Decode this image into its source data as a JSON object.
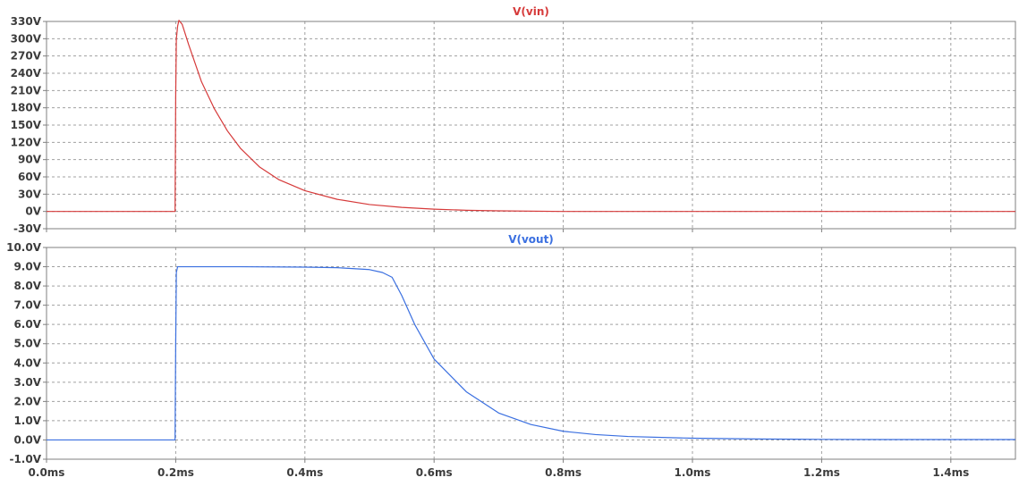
{
  "chart_data": [
    {
      "type": "line",
      "title": "V(vin)",
      "x_unit": "ms",
      "xlim": [
        0,
        1.5
      ],
      "ylim": [
        -30,
        330
      ],
      "x_ticks": [
        0,
        0.2,
        0.4,
        0.6,
        0.8,
        1.0,
        1.2,
        1.4
      ],
      "y_ticks": [
        -30,
        0,
        30,
        60,
        90,
        120,
        150,
        180,
        210,
        240,
        270,
        300,
        330
      ],
      "y_tick_labels": [
        "-30V",
        "0V",
        "30V",
        "60V",
        "90V",
        "120V",
        "150V",
        "180V",
        "210V",
        "240V",
        "270V",
        "300V",
        "330V"
      ],
      "grid": true,
      "color": "#d63a3a",
      "series": [
        {
          "x": [
            0,
            0.199,
            0.2,
            0.201,
            0.203,
            0.205,
            0.21,
            0.22,
            0.24,
            0.26,
            0.28,
            0.3,
            0.33,
            0.36,
            0.4,
            0.45,
            0.5,
            0.55,
            0.6,
            0.65,
            0.7,
            0.8,
            1.0,
            1.2,
            1.5
          ],
          "y": [
            0,
            0,
            200,
            300,
            322,
            332,
            325,
            290,
            225,
            178,
            140,
            110,
            77,
            55,
            36,
            21,
            12,
            7,
            4,
            2,
            1,
            0,
            0,
            0,
            0
          ]
        }
      ]
    },
    {
      "type": "line",
      "title": "V(vout)",
      "x_unit": "ms",
      "xlim": [
        0,
        1.5
      ],
      "ylim": [
        -1,
        10
      ],
      "x_ticks": [
        0,
        0.2,
        0.4,
        0.6,
        0.8,
        1.0,
        1.2,
        1.4
      ],
      "x_tick_labels": [
        "0.0ms",
        "0.2ms",
        "0.4ms",
        "0.6ms",
        "0.8ms",
        "1.0ms",
        "1.2ms",
        "1.4ms"
      ],
      "y_ticks": [
        -1,
        0,
        1,
        2,
        3,
        4,
        5,
        6,
        7,
        8,
        9,
        10
      ],
      "y_tick_labels": [
        "-1.0V",
        "0.0V",
        "1.0V",
        "2.0V",
        "3.0V",
        "4.0V",
        "5.0V",
        "6.0V",
        "7.0V",
        "8.0V",
        "9.0V",
        "10.0V"
      ],
      "grid": true,
      "color": "#3a6fe0",
      "series": [
        {
          "x": [
            0,
            0.199,
            0.2,
            0.201,
            0.203,
            0.3,
            0.4,
            0.45,
            0.5,
            0.52,
            0.535,
            0.55,
            0.57,
            0.6,
            0.65,
            0.7,
            0.75,
            0.8,
            0.85,
            0.9,
            1.0,
            1.1,
            1.2,
            1.3,
            1.5
          ],
          "y": [
            0,
            0,
            5,
            8.7,
            9.0,
            9.0,
            8.98,
            8.95,
            8.85,
            8.7,
            8.45,
            7.5,
            6.0,
            4.2,
            2.5,
            1.4,
            0.8,
            0.45,
            0.28,
            0.18,
            0.09,
            0.05,
            0.03,
            0.02,
            0.02
          ]
        }
      ]
    }
  ]
}
